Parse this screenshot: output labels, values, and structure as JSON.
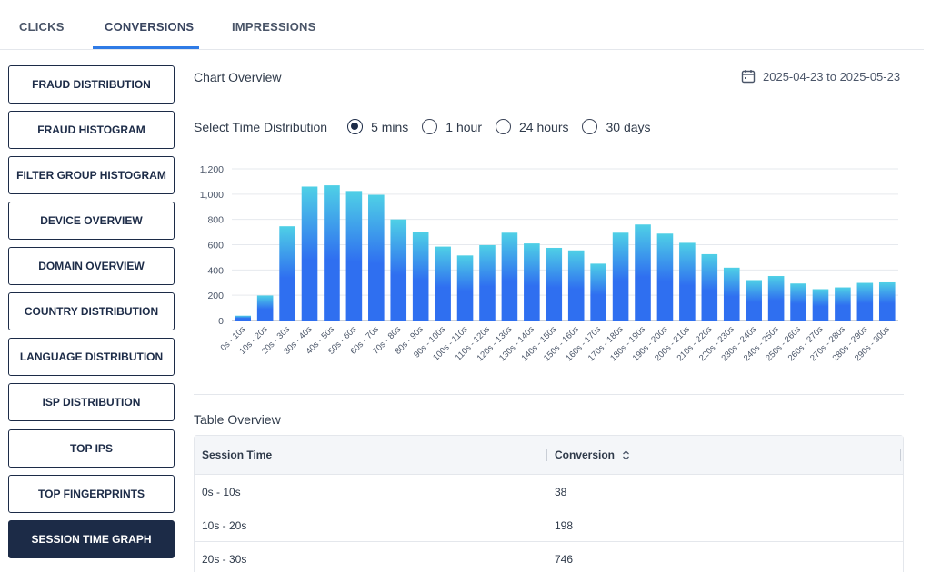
{
  "tabs": [
    "CLICKS",
    "CONVERSIONS",
    "IMPRESSIONS"
  ],
  "active_tab": "CONVERSIONS",
  "sidebar": {
    "items": [
      "FRAUD DISTRIBUTION",
      "FRAUD HISTOGRAM",
      "FILTER GROUP HISTOGRAM",
      "DEVICE OVERVIEW",
      "DOMAIN OVERVIEW",
      "COUNTRY DISTRIBUTION",
      "LANGUAGE DISTRIBUTION",
      "ISP DISTRIBUTION",
      "TOP IPS",
      "TOP FINGERPRINTS",
      "SESSION TIME GRAPH"
    ],
    "active": "SESSION TIME GRAPH"
  },
  "chart_section": {
    "title": "Chart Overview",
    "date_range": "2025-04-23 to 2025-05-23",
    "time_select": {
      "label": "Select Time Distribution",
      "options": [
        "5 mins",
        "1 hour",
        "24 hours",
        "30 days"
      ],
      "selected": "5 mins"
    }
  },
  "chart_data": {
    "type": "bar",
    "title": "",
    "xlabel": "",
    "ylabel": "",
    "ylim": [
      0,
      1200
    ],
    "yticks": [
      "0",
      "200",
      "400",
      "600",
      "800",
      "1,000",
      "1,200"
    ],
    "grid": true,
    "colors": {
      "top": "#4fd0e6",
      "bottom": "#2f6ff0"
    },
    "categories": [
      "0s - 10s",
      "10s - 20s",
      "20s - 30s",
      "30s - 40s",
      "40s - 50s",
      "50s - 60s",
      "60s - 70s",
      "70s - 80s",
      "80s - 90s",
      "90s - 100s",
      "100s - 110s",
      "110s - 120s",
      "120s - 130s",
      "130s - 140s",
      "140s - 150s",
      "150s - 160s",
      "160s - 170s",
      "170s - 180s",
      "180s - 190s",
      "190s - 200s",
      "200s - 210s",
      "210s - 220s",
      "220s - 230s",
      "230s - 240s",
      "240s - 250s",
      "250s - 260s",
      "260s - 270s",
      "270s - 280s",
      "280s - 290s",
      "290s - 300s"
    ],
    "values": [
      38,
      198,
      746,
      1060,
      1070,
      1025,
      995,
      800,
      700,
      585,
      515,
      597,
      695,
      610,
      575,
      555,
      450,
      695,
      760,
      688,
      615,
      525,
      418,
      320,
      352,
      293,
      248,
      262,
      298,
      302
    ]
  },
  "table_section": {
    "title": "Table Overview",
    "columns": [
      "Session Time",
      "Conversion"
    ],
    "rows": [
      [
        "0s - 10s",
        "38"
      ],
      [
        "10s - 20s",
        "198"
      ],
      [
        "20s - 30s",
        "746"
      ]
    ]
  }
}
